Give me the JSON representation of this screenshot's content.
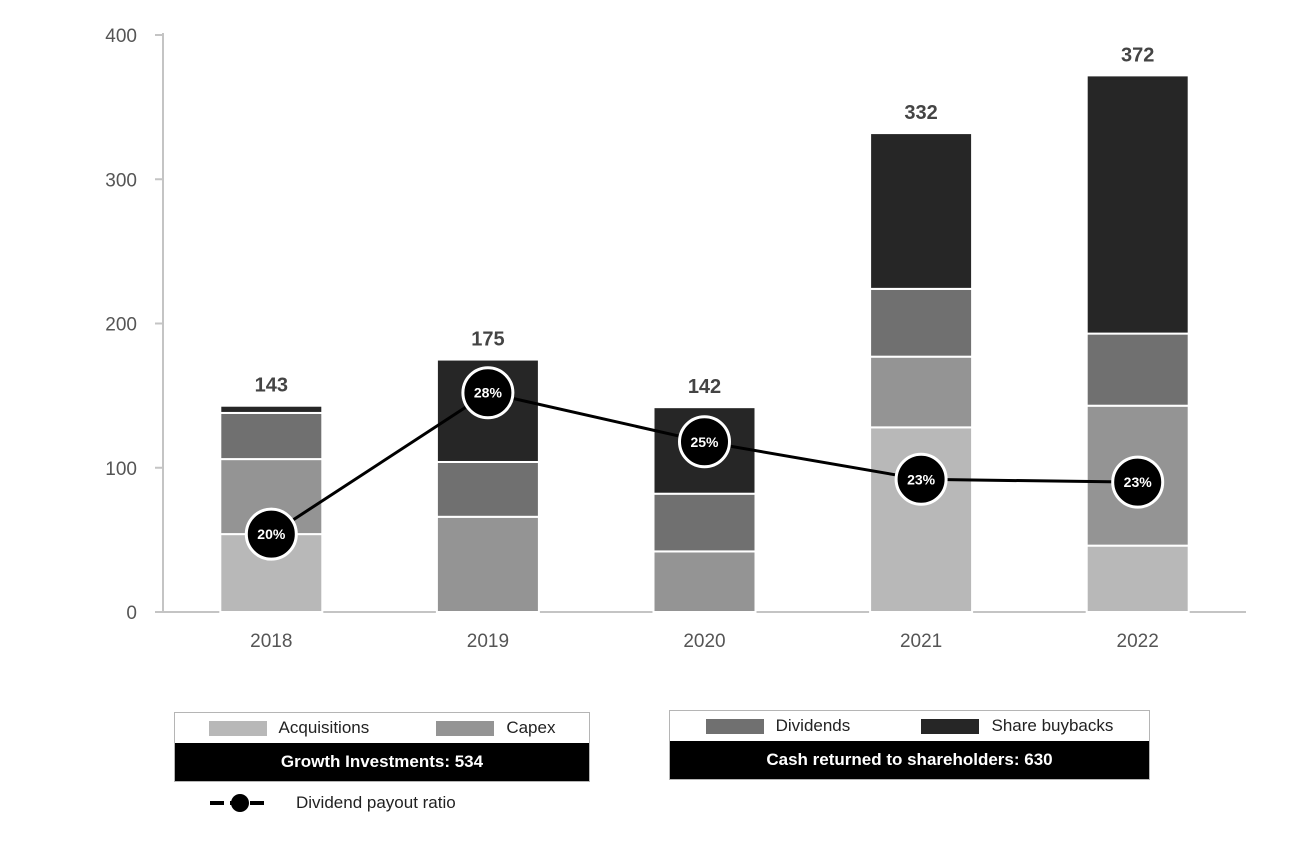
{
  "chart_data": {
    "type": "bar",
    "stacked": true,
    "categories": [
      "2018",
      "2019",
      "2020",
      "2021",
      "2022"
    ],
    "ylim": [
      0,
      400
    ],
    "yticks": [
      "0",
      "100",
      "200",
      "300",
      "400"
    ],
    "series": [
      {
        "name": "Acquisitions",
        "color": "#b8b8b8",
        "values": [
          54,
          0,
          0,
          128,
          46
        ]
      },
      {
        "name": "Capex",
        "color": "#949494",
        "values": [
          52,
          66,
          42,
          49,
          97
        ]
      },
      {
        "name": "Dividends",
        "color": "#707070",
        "values": [
          32,
          38,
          40,
          47,
          50
        ]
      },
      {
        "name": "Share buybacks",
        "color": "#262626",
        "values": [
          5,
          71,
          60,
          108,
          179
        ]
      }
    ],
    "totals": [
      "143",
      "175",
      "142",
      "332",
      "372"
    ],
    "line": {
      "name": "Dividend payout ratio",
      "y_values": [
        54,
        152,
        118,
        92,
        90
      ],
      "labels": [
        "20%",
        "28%",
        "25%",
        "23%",
        "23%"
      ]
    },
    "grid": false
  },
  "legend": {
    "acquisitions": "Acquisitions",
    "capex": "Capex",
    "dividends": "Dividends",
    "buybacks": "Share buybacks",
    "growth_total": "Growth Investments: 534",
    "cash_total": "Cash returned to shareholders: 630",
    "payout": "Dividend payout ratio"
  }
}
